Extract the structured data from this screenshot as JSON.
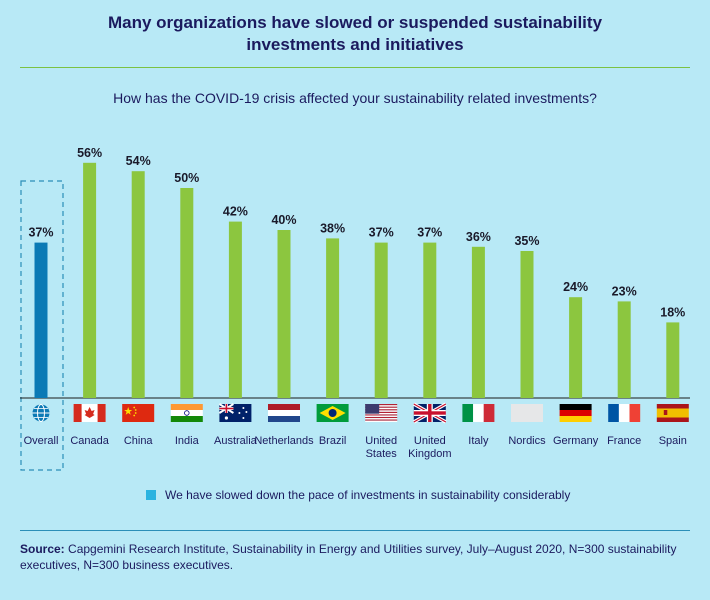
{
  "header": {
    "title_line1": "Many organizations have slowed or suspended sustainability",
    "title_line2": "investments and initiatives",
    "question": "How has the COVID-19 crisis affected your sustainability related investments?"
  },
  "colors": {
    "overall_bar": "#0b7ab5",
    "country_bar": "#8cc63f",
    "legend_swatch": "#2ab3e0"
  },
  "chart_data": {
    "type": "bar",
    "title": "How has the COVID-19 crisis affected your sustainability related investments?",
    "categories": [
      "Overall",
      "Canada",
      "China",
      "India",
      "Australia",
      "Netherlands",
      "Brazil",
      "United States",
      "United Kingdom",
      "Italy",
      "Nordics",
      "Germany",
      "France",
      "Spain"
    ],
    "category_lines": [
      [
        "Overall"
      ],
      [
        "Canada"
      ],
      [
        "China"
      ],
      [
        "India"
      ],
      [
        "Australia"
      ],
      [
        "Netherlands"
      ],
      [
        "Brazil"
      ],
      [
        "United",
        "States"
      ],
      [
        "United",
        "Kingdom"
      ],
      [
        "Italy"
      ],
      [
        "Nordics"
      ],
      [
        "Germany"
      ],
      [
        "France"
      ],
      [
        "Spain"
      ]
    ],
    "flags": [
      "globe-icon",
      "canada-flag-icon",
      "china-flag-icon",
      "india-flag-icon",
      "australia-flag-icon",
      "netherlands-flag-icon",
      "brazil-flag-icon",
      "usa-flag-icon",
      "uk-flag-icon",
      "italy-flag-icon",
      "nordics-flag-icon",
      "germany-flag-icon",
      "france-flag-icon",
      "spain-flag-icon"
    ],
    "values": [
      37,
      56,
      54,
      50,
      42,
      40,
      38,
      37,
      37,
      36,
      35,
      24,
      23,
      18
    ],
    "value_labels": [
      "37%",
      "56%",
      "54%",
      "50%",
      "42%",
      "40%",
      "38%",
      "37%",
      "37%",
      "36%",
      "35%",
      "24%",
      "23%",
      "18%"
    ],
    "ylim": [
      0,
      60
    ],
    "legend": [
      "We have slowed down the pace of investments in sustainability considerably"
    ],
    "xlabel": "",
    "ylabel": ""
  },
  "footer": {
    "source_label": "Source:",
    "source_text": " Capgemini Research Institute, Sustainability in Energy and Utilities survey, July–August 2020, N=300 sustainability executives, N=300 business executives."
  }
}
